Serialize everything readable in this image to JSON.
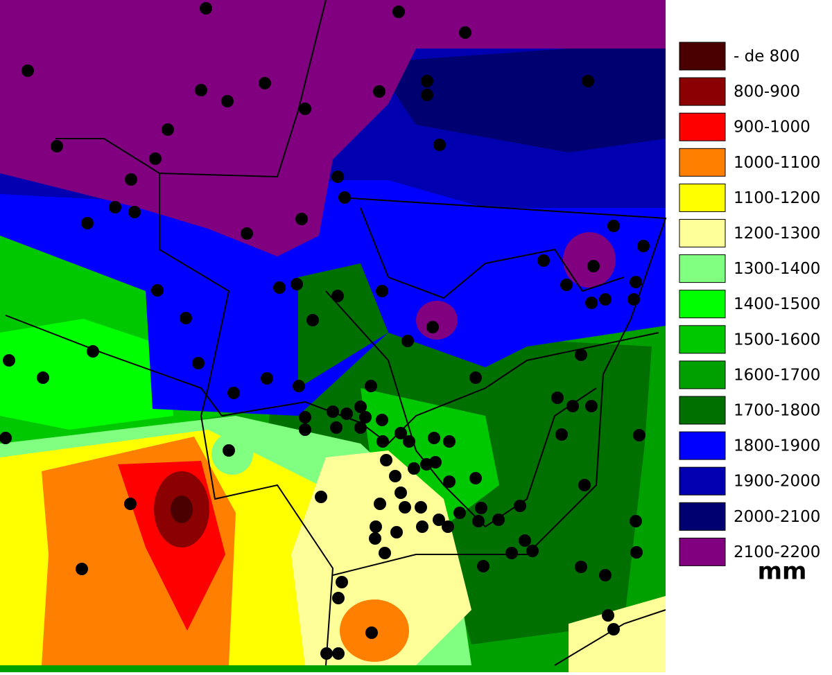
{
  "legend": {
    "items": [
      {
        "label": "- de 800",
        "color": "#4a0000"
      },
      {
        "label": "800-900",
        "color": "#8b0000"
      },
      {
        "label": "900-1000",
        "color": "#ff0000"
      },
      {
        "label": "1000-1100",
        "color": "#ff8000"
      },
      {
        "label": "1100-1200",
        "color": "#ffff00"
      },
      {
        "label": "1200-1300",
        "color": "#ffff99"
      },
      {
        "label": "1300-1400",
        "color": "#80ff80"
      },
      {
        "label": "1400-1500",
        "color": "#00ff00"
      },
      {
        "label": "1500-1600",
        "color": "#00c800"
      },
      {
        "label": "1600-1700",
        "color": "#00a000"
      },
      {
        "label": "1700-1800",
        "color": "#007000"
      },
      {
        "label": "1800-1900",
        "color": "#0000ff"
      },
      {
        "label": "1900-2000",
        "color": "#0000b0"
      },
      {
        "label": "2000-2100",
        "color": "#000070"
      },
      {
        "label": "2100-2200",
        "color": "#800080"
      }
    ],
    "unit": "mm"
  }
}
